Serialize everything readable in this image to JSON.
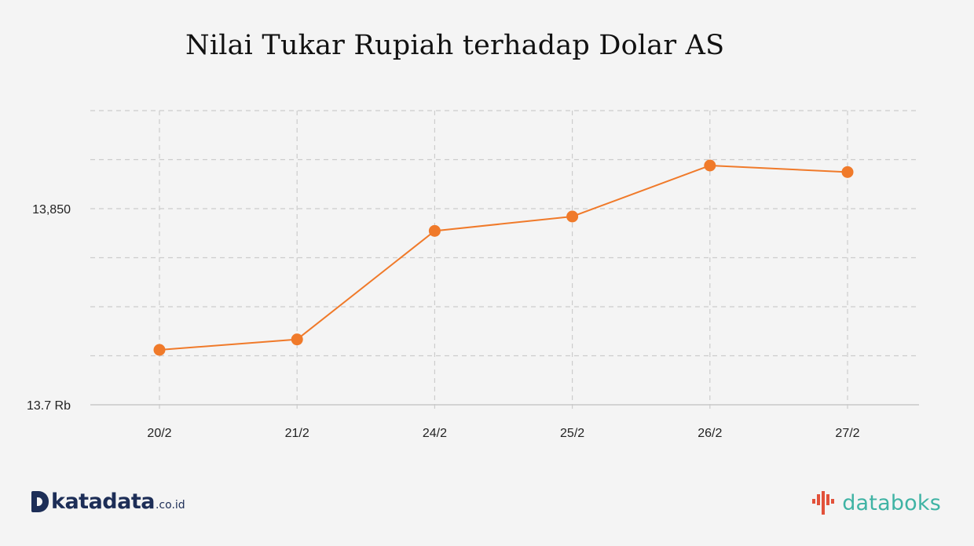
{
  "chart_data": {
    "type": "line",
    "title": "Nilai Tukar Rupiah terhadap Dolar AS",
    "categories": [
      "20/2",
      "21/2",
      "24/2",
      "25/2",
      "26/2",
      "27/2"
    ],
    "series": [
      {
        "values": [
          13742,
          13750,
          13833,
          13844,
          13883,
          13878
        ],
        "color": "#f07a2a"
      }
    ],
    "ylim": [
      13700,
      13925
    ],
    "yticks": [
      13700,
      13737.5,
      13775,
      13812.5,
      13850,
      13887.5,
      13925
    ],
    "ytick_labels": {
      "13700": "13.7 Rb",
      "13850": "13,850"
    },
    "grid": true,
    "xlabel": "",
    "ylabel": ""
  },
  "branding": {
    "left_logo": "katadata",
    "left_logo_suffix": ".co.id",
    "right_logo": "databoks"
  },
  "colors": {
    "line": "#f07a2a",
    "grid": "#cccccc",
    "background": "#f4f4f4",
    "katadata": "#1d2e57",
    "databoks": "#3fb3a4",
    "databoks_mark": "#e2513a"
  }
}
